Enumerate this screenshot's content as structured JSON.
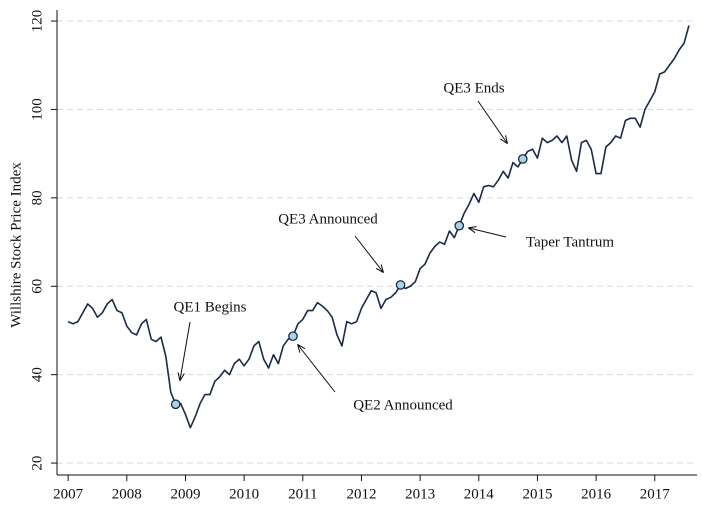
{
  "chart_data": {
    "type": "line",
    "ylabel": "Willshire Stock Price Index",
    "x": [
      2007,
      2007.083,
      2007.167,
      2007.25,
      2007.333,
      2007.417,
      2007.5,
      2007.583,
      2007.667,
      2007.75,
      2007.833,
      2007.917,
      2008,
      2008.083,
      2008.167,
      2008.25,
      2008.333,
      2008.417,
      2008.5,
      2008.583,
      2008.667,
      2008.75,
      2008.833,
      2008.917,
      2009,
      2009.083,
      2009.167,
      2009.25,
      2009.333,
      2009.417,
      2009.5,
      2009.583,
      2009.667,
      2009.75,
      2009.833,
      2009.917,
      2010,
      2010.083,
      2010.167,
      2010.25,
      2010.333,
      2010.417,
      2010.5,
      2010.583,
      2010.667,
      2010.75,
      2010.833,
      2010.917,
      2011,
      2011.083,
      2011.167,
      2011.25,
      2011.333,
      2011.417,
      2011.5,
      2011.583,
      2011.667,
      2011.75,
      2011.833,
      2011.917,
      2012,
      2012.083,
      2012.167,
      2012.25,
      2012.333,
      2012.417,
      2012.5,
      2012.583,
      2012.667,
      2012.75,
      2012.833,
      2012.917,
      2013,
      2013.083,
      2013.167,
      2013.25,
      2013.333,
      2013.417,
      2013.5,
      2013.583,
      2013.667,
      2013.75,
      2013.833,
      2013.917,
      2014,
      2014.083,
      2014.167,
      2014.25,
      2014.333,
      2014.417,
      2014.5,
      2014.583,
      2014.667,
      2014.75,
      2014.833,
      2014.917,
      2015,
      2015.083,
      2015.167,
      2015.25,
      2015.333,
      2015.417,
      2015.5,
      2015.583,
      2015.667,
      2015.75,
      2015.833,
      2015.917,
      2016,
      2016.083,
      2016.167,
      2016.25,
      2016.333,
      2016.417,
      2016.5,
      2016.583,
      2016.667,
      2016.75,
      2016.833,
      2016.917,
      2017,
      2017.083,
      2017.167,
      2017.25,
      2017.333,
      2017.417,
      2017.5,
      2017.583
    ],
    "series": [
      {
        "color": "#1a2a47",
        "values": [
          52,
          51.5,
          52,
          54,
          56,
          55,
          53,
          54,
          56,
          57,
          54.5,
          54,
          51,
          49.5,
          49,
          51.5,
          52.5,
          48,
          47.5,
          48.5,
          44,
          36,
          33.3,
          33.5,
          31,
          28,
          30.5,
          33.5,
          35.5,
          35.5,
          38.5,
          39.5,
          41,
          40,
          42.5,
          43.5,
          42,
          43.5,
          46.5,
          47.5,
          43.5,
          41.5,
          44.5,
          42.5,
          46.5,
          48,
          48.7,
          51.5,
          52.5,
          54.5,
          54.5,
          56.3,
          55.5,
          54.5,
          53,
          49,
          46.5,
          52,
          51.5,
          52,
          55,
          57,
          59,
          58.5,
          55,
          57,
          57.5,
          58.5,
          60.3,
          59.5,
          60,
          61,
          64,
          65,
          67.5,
          69,
          70,
          69.5,
          72.5,
          71,
          73.7,
          76.5,
          78.5,
          81,
          79,
          82.5,
          82.8,
          82.5,
          84,
          86,
          84.5,
          88,
          87,
          88.8,
          90.5,
          91,
          89,
          93.5,
          92.5,
          93,
          94,
          92.5,
          94,
          88.5,
          86,
          92.5,
          93,
          91,
          85.5,
          85.5,
          91.5,
          92.5,
          94,
          93.5,
          97.5,
          98,
          98,
          96,
          100,
          102,
          104,
          108,
          108.5,
          110,
          111.5,
          113.5,
          115,
          119
        ]
      }
    ],
    "annotations": [
      {
        "text": "QE1 Begins",
        "x": 2008.833,
        "y": 33.3
      },
      {
        "text": "QE2 Announced",
        "x": 2010.833,
        "y": 48.7
      },
      {
        "text": "QE3 Announced",
        "x": 2012.667,
        "y": 60.3
      },
      {
        "text": "Taper Tantrum",
        "x": 2013.667,
        "y": 73.7
      },
      {
        "text": "QE3 Ends",
        "x": 2014.75,
        "y": 88.8
      }
    ],
    "marker_color": "#a9d3e6",
    "xlim": [
      2006.81,
      2017.72
    ],
    "xticks": [
      2007,
      2008,
      2009,
      2010,
      2011,
      2012,
      2013,
      2014,
      2015,
      2016,
      2017
    ],
    "ylim": [
      17.3,
      122.5
    ],
    "yticks": [
      20,
      40,
      60,
      80,
      100,
      120
    ],
    "grid": true
  }
}
